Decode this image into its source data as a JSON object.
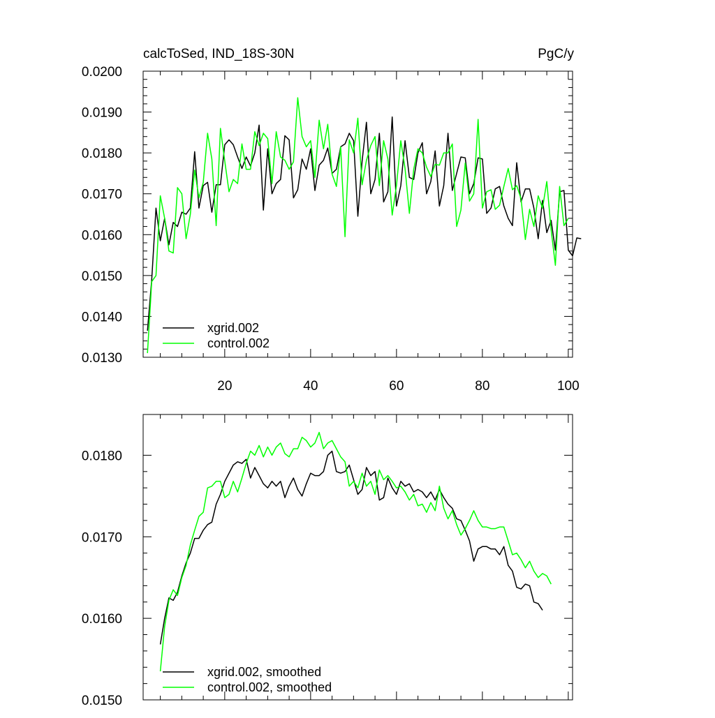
{
  "page": {
    "title_left": "calcToSed, IND_18S-30N",
    "title_right": "PgC/y"
  },
  "colors": {
    "xgrid": "#000000",
    "control": "#00ff00",
    "axis": "#000000",
    "background": "#ffffff"
  },
  "chart_data": [
    {
      "type": "line",
      "title": "calcToSed, IND_18S-30N",
      "units": "PgC/y",
      "xlim": [
        1,
        101
      ],
      "ylim": [
        0.013,
        0.02
      ],
      "x_ticks": [
        20,
        40,
        60,
        80,
        100
      ],
      "x_tick_labels": [
        "20",
        "40",
        "60",
        "80",
        "100"
      ],
      "y_ticks": [
        0.013,
        0.014,
        0.015,
        0.016,
        0.017,
        0.018,
        0.019,
        0.02
      ],
      "y_tick_labels": [
        "0.0130",
        "0.0140",
        "0.0150",
        "0.0160",
        "0.0170",
        "0.0180",
        "0.0190",
        "0.0200"
      ],
      "legend_position": "bottom-left",
      "grid": false,
      "x_start": 2,
      "series": [
        {
          "name": "xgrid.002",
          "color": "#000000",
          "values": [
            0.01365,
            0.0149,
            0.01665,
            0.01585,
            0.0164,
            0.01575,
            0.0163,
            0.0162,
            0.01655,
            0.0165,
            0.01665,
            0.01803,
            0.01665,
            0.0172,
            0.01728,
            0.01655,
            0.01722,
            0.01722,
            0.0182,
            0.01832,
            0.0182,
            0.0179,
            0.01762,
            0.0179,
            0.01768,
            0.018,
            0.01868,
            0.0166,
            0.0181,
            0.017,
            0.01725,
            0.01735,
            0.01842,
            0.01832,
            0.0169,
            0.0171,
            0.01785,
            0.0176,
            0.0181,
            0.01708,
            0.0177,
            0.01782,
            0.01812,
            0.0175,
            0.0176,
            0.01815,
            0.01822,
            0.01848,
            0.0183,
            0.01645,
            0.0178,
            0.01875,
            0.017,
            0.01735,
            0.01848,
            0.0168,
            0.01705,
            0.01888,
            0.0167,
            0.0172,
            0.0183,
            0.0174,
            0.01735,
            0.018,
            0.01825,
            0.017,
            0.0173,
            0.01805,
            0.0167,
            0.0172,
            0.01848,
            0.01708,
            0.0175,
            0.0179,
            0.01788,
            0.017,
            0.01725,
            0.01788,
            0.01785,
            0.01652,
            0.01665,
            0.01712,
            0.01718,
            0.0167,
            0.0164,
            0.01622,
            0.01776,
            0.0168,
            0.01712,
            0.01712,
            0.01665,
            0.0159,
            0.01684,
            0.01605,
            0.01635,
            0.01562,
            0.01705,
            0.01708,
            0.01562,
            0.01548,
            0.01592,
            0.0159
          ]
        },
        {
          "name": "control.002",
          "color": "#00ff00",
          "values": [
            0.0131,
            0.01485,
            0.015,
            0.01695,
            0.0164,
            0.0156,
            0.01555,
            0.01715,
            0.017,
            0.0159,
            0.0165,
            0.01758,
            0.0169,
            0.01728,
            0.01848,
            0.01785,
            0.01622,
            0.0186,
            0.0178,
            0.01705,
            0.01735,
            0.01725,
            0.01822,
            0.0176,
            0.0176,
            0.01852,
            0.01818,
            0.01848,
            0.01835,
            0.01725,
            0.01852,
            0.0179,
            0.01782,
            0.0176,
            0.01778,
            0.01935,
            0.0184,
            0.01815,
            0.0183,
            0.0174,
            0.0188,
            0.0181,
            0.0187,
            0.01748,
            0.01718,
            0.01815,
            0.01595,
            0.01832,
            0.018,
            0.01885,
            0.01722,
            0.01782,
            0.01818,
            0.0184,
            0.0172,
            0.0183,
            0.01785,
            0.01648,
            0.0172,
            0.0183,
            0.01762,
            0.01652,
            0.0176,
            0.0181,
            0.018,
            0.01765,
            0.01742,
            0.01772,
            0.0177,
            0.018,
            0.018,
            0.01822,
            0.0162,
            0.0166,
            0.01775,
            0.01682,
            0.017,
            0.01882,
            0.01665,
            0.01705,
            0.0171,
            0.01662,
            0.01672,
            0.01718,
            0.01762,
            0.0171,
            0.0172,
            0.01688,
            0.01588,
            0.01662,
            0.0162,
            0.01695,
            0.01665,
            0.0173,
            0.01612,
            0.01525,
            0.01718,
            0.01622,
            0.0164
          ]
        }
      ]
    },
    {
      "type": "line",
      "xlim": [
        1,
        101
      ],
      "ylim": [
        0.015,
        0.0185
      ],
      "x_ticks": [
        20,
        40,
        60,
        80,
        100
      ],
      "x_tick_labels": [],
      "y_ticks": [
        0.015,
        0.016,
        0.017,
        0.018
      ],
      "y_tick_labels": [
        "0.0150",
        "0.0160",
        "0.0170",
        "0.0180"
      ],
      "legend_position": "bottom-left",
      "grid": false,
      "x_start": 5,
      "series": [
        {
          "name": "xgrid.002, smoothed",
          "color": "#000000",
          "values": [
            0.01568,
            0.016,
            0.01625,
            0.01622,
            0.01632,
            0.01652,
            0.01668,
            0.0168,
            0.01698,
            0.01698,
            0.01708,
            0.01715,
            0.01718,
            0.0174,
            0.01752,
            0.01768,
            0.01778,
            0.01788,
            0.01792,
            0.0179,
            0.01795,
            0.01772,
            0.01785,
            0.01775,
            0.01765,
            0.0176,
            0.01768,
            0.01762,
            0.01768,
            0.01748,
            0.01762,
            0.01772,
            0.01758,
            0.0175,
            0.01765,
            0.01778,
            0.01775,
            0.01775,
            0.0178,
            0.018,
            0.01805,
            0.0178,
            0.01778,
            0.0178,
            0.01788,
            0.0177,
            0.01752,
            0.01758,
            0.01785,
            0.01775,
            0.0178,
            0.01745,
            0.01748,
            0.01772,
            0.0176,
            0.01752,
            0.01768,
            0.01762,
            0.01765,
            0.01755,
            0.01758,
            0.01755,
            0.01748,
            0.01755,
            0.01745,
            0.01758,
            0.01748,
            0.0174,
            0.01735,
            0.01722,
            0.0172,
            0.01708,
            0.01695,
            0.0167,
            0.01685,
            0.01688,
            0.01688,
            0.01685,
            0.01685,
            0.01678,
            0.01688,
            0.01665,
            0.01658,
            0.01638,
            0.01636,
            0.01642,
            0.0164,
            0.0162,
            0.01618,
            0.0161
          ]
        },
        {
          "name": "control.002, smoothed",
          "color": "#00ff00",
          "values": [
            0.01535,
            0.0159,
            0.01622,
            0.01635,
            0.01628,
            0.0165,
            0.01665,
            0.0169,
            0.01708,
            0.01725,
            0.0173,
            0.0176,
            0.01762,
            0.01768,
            0.01768,
            0.01748,
            0.01752,
            0.01768,
            0.01755,
            0.01772,
            0.0179,
            0.01805,
            0.018,
            0.01812,
            0.01798,
            0.0181,
            0.018,
            0.0181,
            0.01815,
            0.01802,
            0.01798,
            0.01808,
            0.01808,
            0.01822,
            0.01818,
            0.0181,
            0.01815,
            0.01828,
            0.01808,
            0.01815,
            0.01818,
            0.01808,
            0.01798,
            0.01792,
            0.01762,
            0.01768,
            0.0176,
            0.01778,
            0.01762,
            0.01768,
            0.01752,
            0.01782,
            0.0177,
            0.01775,
            0.01768,
            0.0176,
            0.01762,
            0.01755,
            0.01745,
            0.01752,
            0.01738,
            0.0174,
            0.0173,
            0.01742,
            0.01732,
            0.01762,
            0.01735,
            0.01722,
            0.01732,
            0.01715,
            0.01702,
            0.0171,
            0.0172,
            0.01732,
            0.0172,
            0.01712,
            0.01712,
            0.0171,
            0.0171,
            0.01712,
            0.01712,
            0.01695,
            0.01678,
            0.0168,
            0.01672,
            0.01662,
            0.0167,
            0.01658,
            0.0165,
            0.01655,
            0.01652,
            0.01642
          ]
        }
      ]
    }
  ]
}
